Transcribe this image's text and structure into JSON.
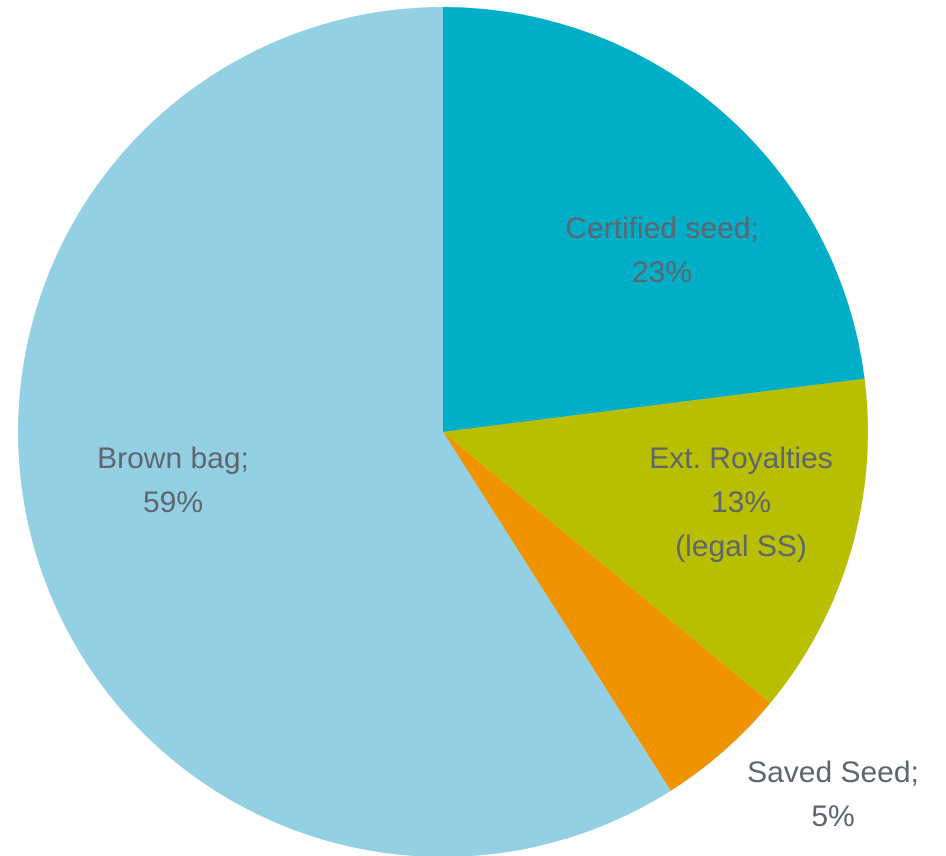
{
  "chart_data": {
    "type": "pie",
    "title": "",
    "slices": [
      {
        "label": "Certified seed",
        "value": 23,
        "display": [
          "Certified seed;",
          "23%"
        ],
        "color": "#00aec7"
      },
      {
        "label": "Ext. Royalties",
        "value": 13,
        "display": [
          "Ext. Royalties",
          "13%",
          "(legal SS)"
        ],
        "color": "#b8be00"
      },
      {
        "label": "Saved Seed",
        "value": 5,
        "display": [
          "Saved Seed;",
          "5%"
        ],
        "color": "#f09300"
      },
      {
        "label": "Brown bag",
        "value": 59,
        "display": [
          "Brown bag;",
          "59%"
        ],
        "color": "#93d0e3"
      }
    ],
    "legend": "none",
    "start_angle": "12 o'clock",
    "direction": "clockwise"
  }
}
